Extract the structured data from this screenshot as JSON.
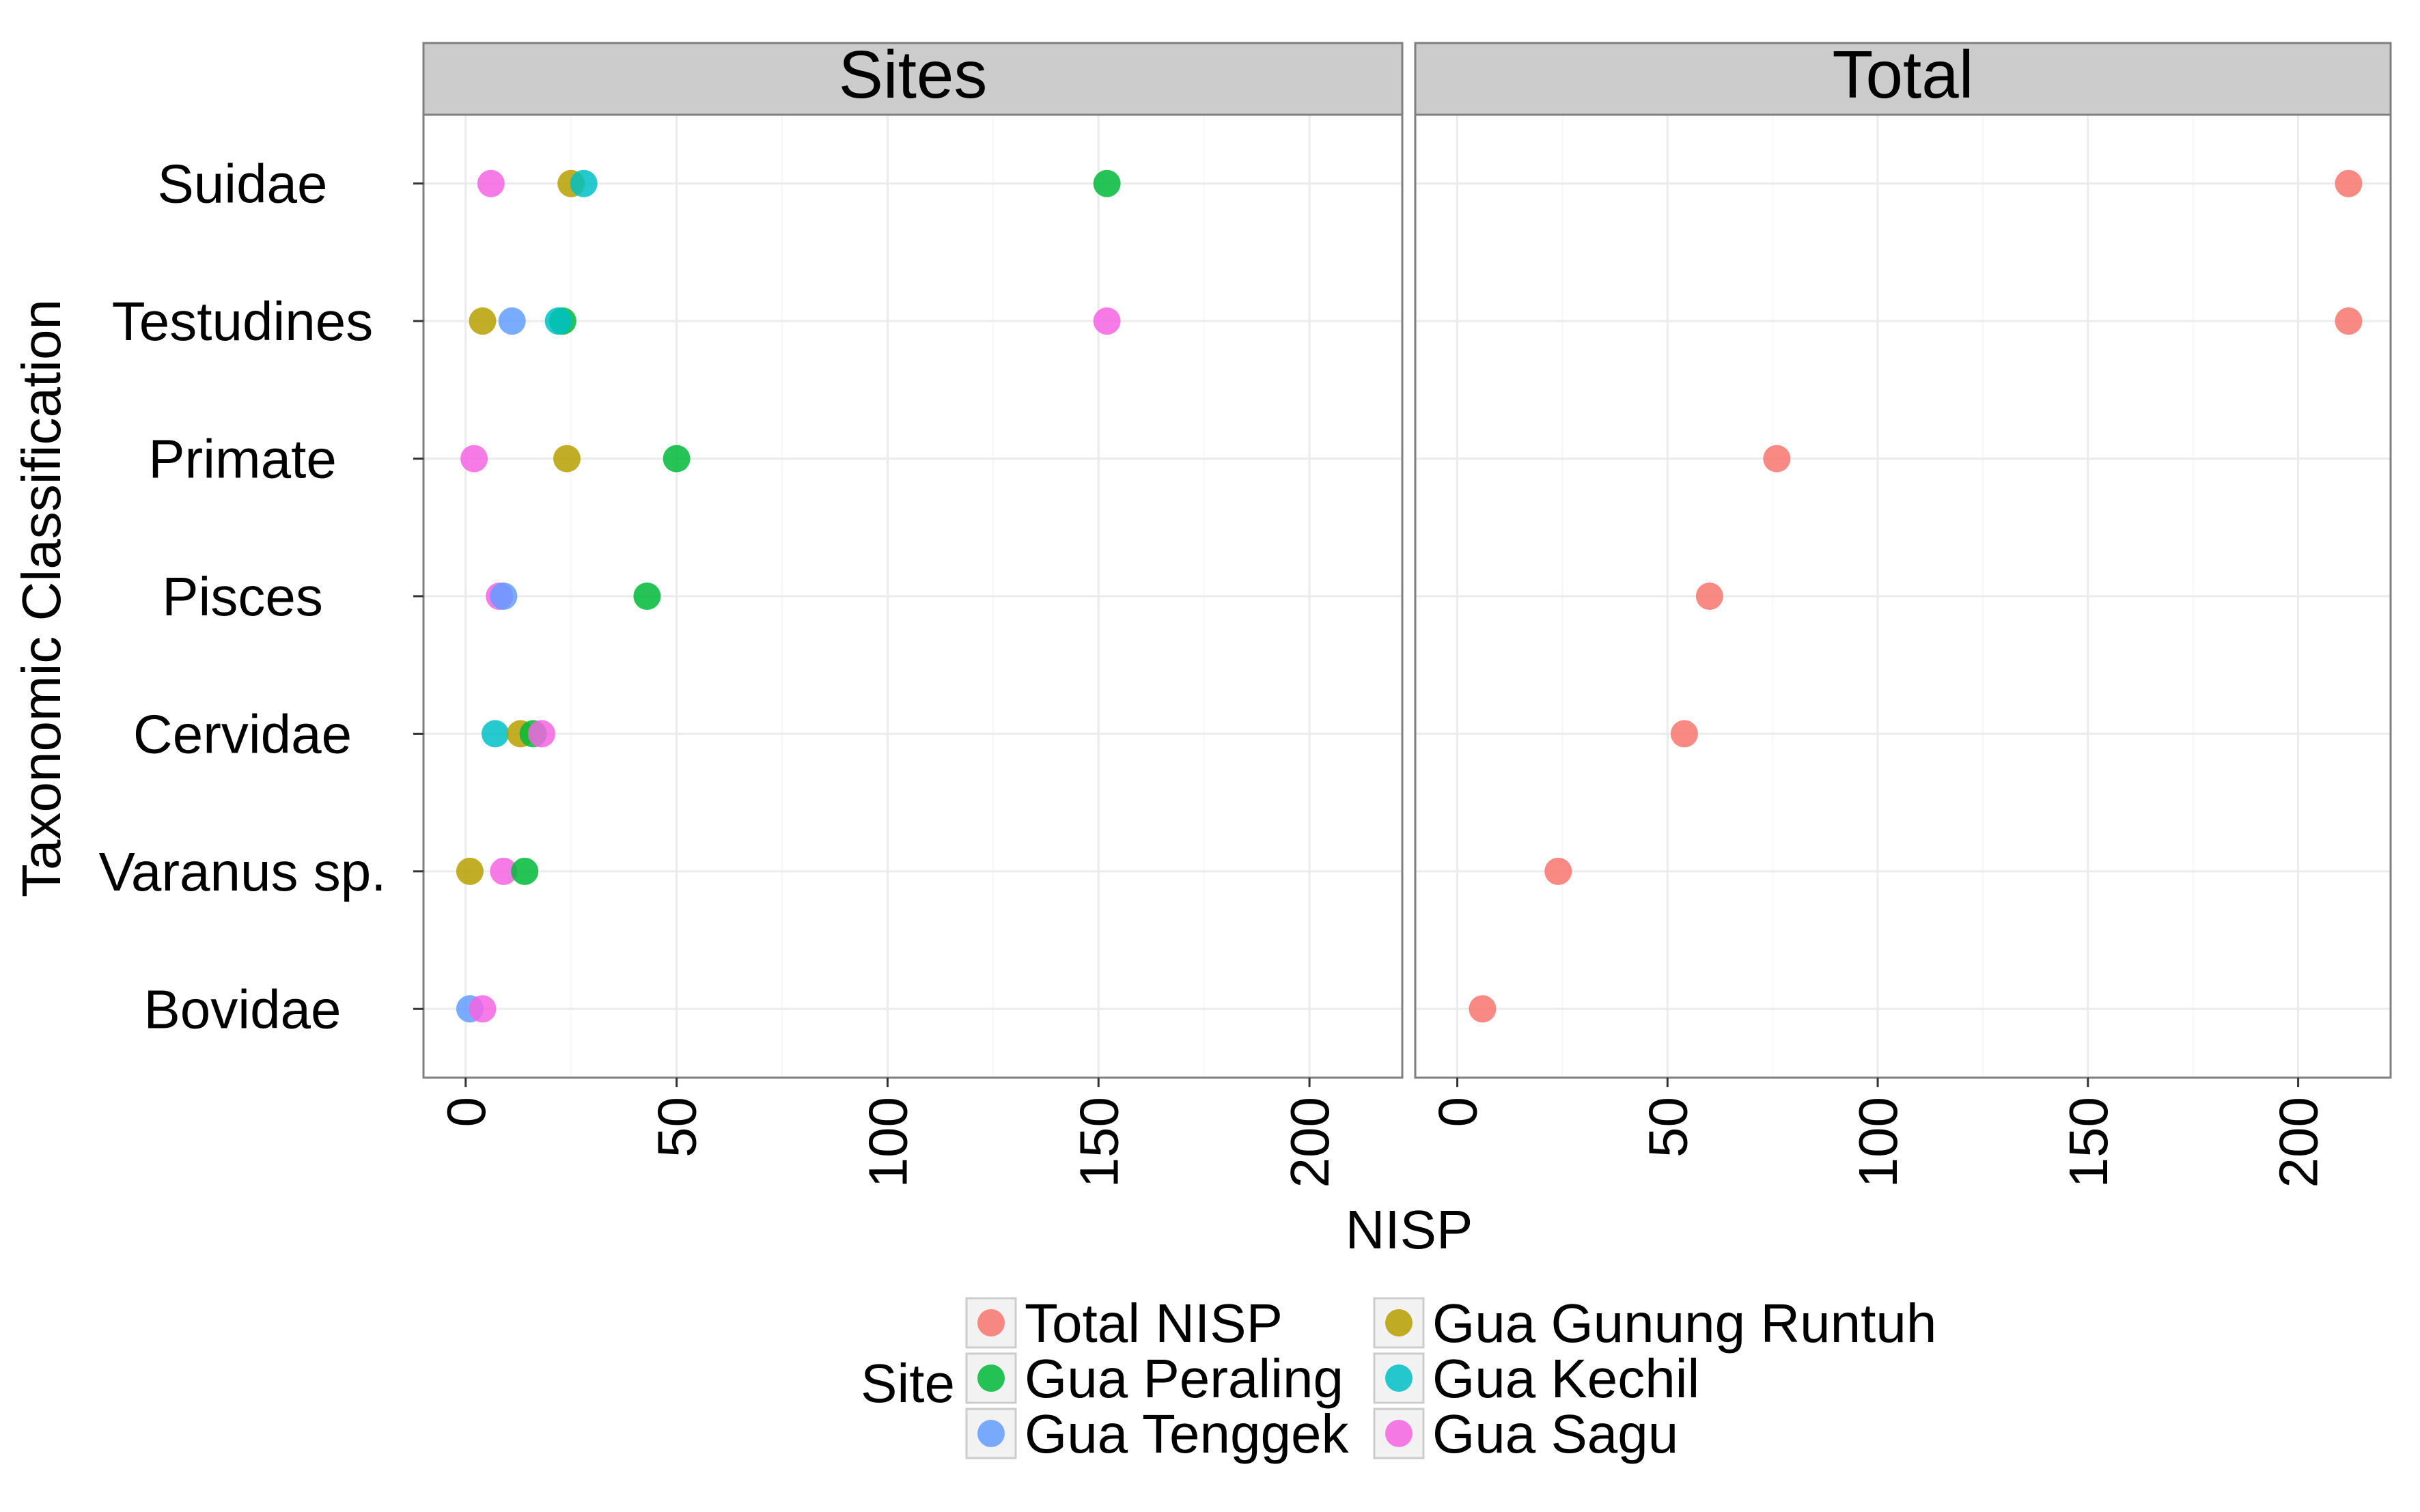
{
  "chart_data": {
    "type": "scatter",
    "ylabel": "Taxonomic Classification",
    "xlabel": "NISP",
    "categories": [
      "Suidae",
      "Testudines",
      "Primate",
      "Pisces",
      "Cervidae",
      "Varanus sp.",
      "Bovidae"
    ],
    "xlim": [
      -10,
      222
    ],
    "xticks": [
      0,
      50,
      100,
      150,
      200
    ],
    "grid": true,
    "legend_position": "bottom",
    "legend": {
      "title": "Site",
      "items": [
        {
          "name": "Total NISP",
          "color": "#F8766D"
        },
        {
          "name": "Gua Peraling",
          "color": "#00BA38"
        },
        {
          "name": "Gua Tenggek",
          "color": "#619CFF"
        },
        {
          "name": "Gua Gunung Runtuh",
          "color": "#B79F00"
        },
        {
          "name": "Gua Kechil",
          "color": "#00BFC4"
        },
        {
          "name": "Gua Sagu",
          "color": "#F564E3"
        }
      ]
    },
    "panels": [
      {
        "title": "Sites",
        "points": [
          {
            "category": "Suidae",
            "site": "Gua Sagu",
            "value": 6
          },
          {
            "category": "Suidae",
            "site": "Gua Gunung Runtuh",
            "value": 25
          },
          {
            "category": "Suidae",
            "site": "Gua Kechil",
            "value": 28
          },
          {
            "category": "Suidae",
            "site": "Gua Peraling",
            "value": 152
          },
          {
            "category": "Testudines",
            "site": "Gua Gunung Runtuh",
            "value": 4
          },
          {
            "category": "Testudines",
            "site": "Gua Tenggek",
            "value": 11
          },
          {
            "category": "Testudines",
            "site": "Gua Peraling",
            "value": 23
          },
          {
            "category": "Testudines",
            "site": "Gua Kechil",
            "value": 22
          },
          {
            "category": "Testudines",
            "site": "Gua Sagu",
            "value": 152
          },
          {
            "category": "Primate",
            "site": "Gua Sagu",
            "value": 2
          },
          {
            "category": "Primate",
            "site": "Gua Gunung Runtuh",
            "value": 24
          },
          {
            "category": "Primate",
            "site": "Gua Peraling",
            "value": 50
          },
          {
            "category": "Pisces",
            "site": "Gua Sagu",
            "value": 8
          },
          {
            "category": "Pisces",
            "site": "Gua Tenggek",
            "value": 9
          },
          {
            "category": "Pisces",
            "site": "Gua Peraling",
            "value": 43
          },
          {
            "category": "Cervidae",
            "site": "Gua Kechil",
            "value": 7
          },
          {
            "category": "Cervidae",
            "site": "Gua Gunung Runtuh",
            "value": 13
          },
          {
            "category": "Cervidae",
            "site": "Gua Peraling",
            "value": 16
          },
          {
            "category": "Cervidae",
            "site": "Gua Sagu",
            "value": 18
          },
          {
            "category": "Varanus sp.",
            "site": "Gua Gunung Runtuh",
            "value": 1
          },
          {
            "category": "Varanus sp.",
            "site": "Gua Sagu",
            "value": 9
          },
          {
            "category": "Varanus sp.",
            "site": "Gua Peraling",
            "value": 14
          },
          {
            "category": "Bovidae",
            "site": "Gua Tenggek",
            "value": 1
          },
          {
            "category": "Bovidae",
            "site": "Gua Sagu",
            "value": 4
          }
        ]
      },
      {
        "title": "Total",
        "points": [
          {
            "category": "Suidae",
            "site": "Total NISP",
            "value": 212
          },
          {
            "category": "Testudines",
            "site": "Total NISP",
            "value": 212
          },
          {
            "category": "Primate",
            "site": "Total NISP",
            "value": 76
          },
          {
            "category": "Pisces",
            "site": "Total NISP",
            "value": 60
          },
          {
            "category": "Cervidae",
            "site": "Total NISP",
            "value": 54
          },
          {
            "category": "Varanus sp.",
            "site": "Total NISP",
            "value": 24
          },
          {
            "category": "Bovidae",
            "site": "Total NISP",
            "value": 6
          }
        ]
      }
    ]
  }
}
